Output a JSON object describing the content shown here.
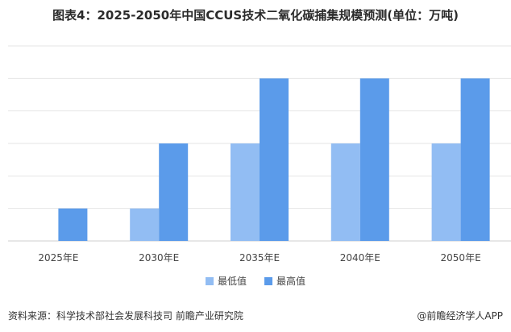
{
  "chart_data": {
    "type": "bar",
    "title": "图表4：2025-2050年中国CCUS技术二氧化碳捕集规模预测(单位：万吨)",
    "categories": [
      "2025年E",
      "2030年E",
      "2035年E",
      "2040年E",
      "2050年E"
    ],
    "series": [
      {
        "name": "最低值",
        "color": "#92bdf3",
        "values": [
          null,
          1,
          3,
          3,
          3
        ]
      },
      {
        "name": "最高值",
        "color": "#5b9bea",
        "values": [
          1,
          3,
          5,
          5,
          5
        ]
      }
    ],
    "ylim": [
      0,
      6
    ],
    "grid": true,
    "legend": "bottom"
  },
  "footer": {
    "source": "资料来源：科学技术部社会发展科技司 前瞻产业研究院",
    "credit": "@前瞻经济学人APP"
  }
}
